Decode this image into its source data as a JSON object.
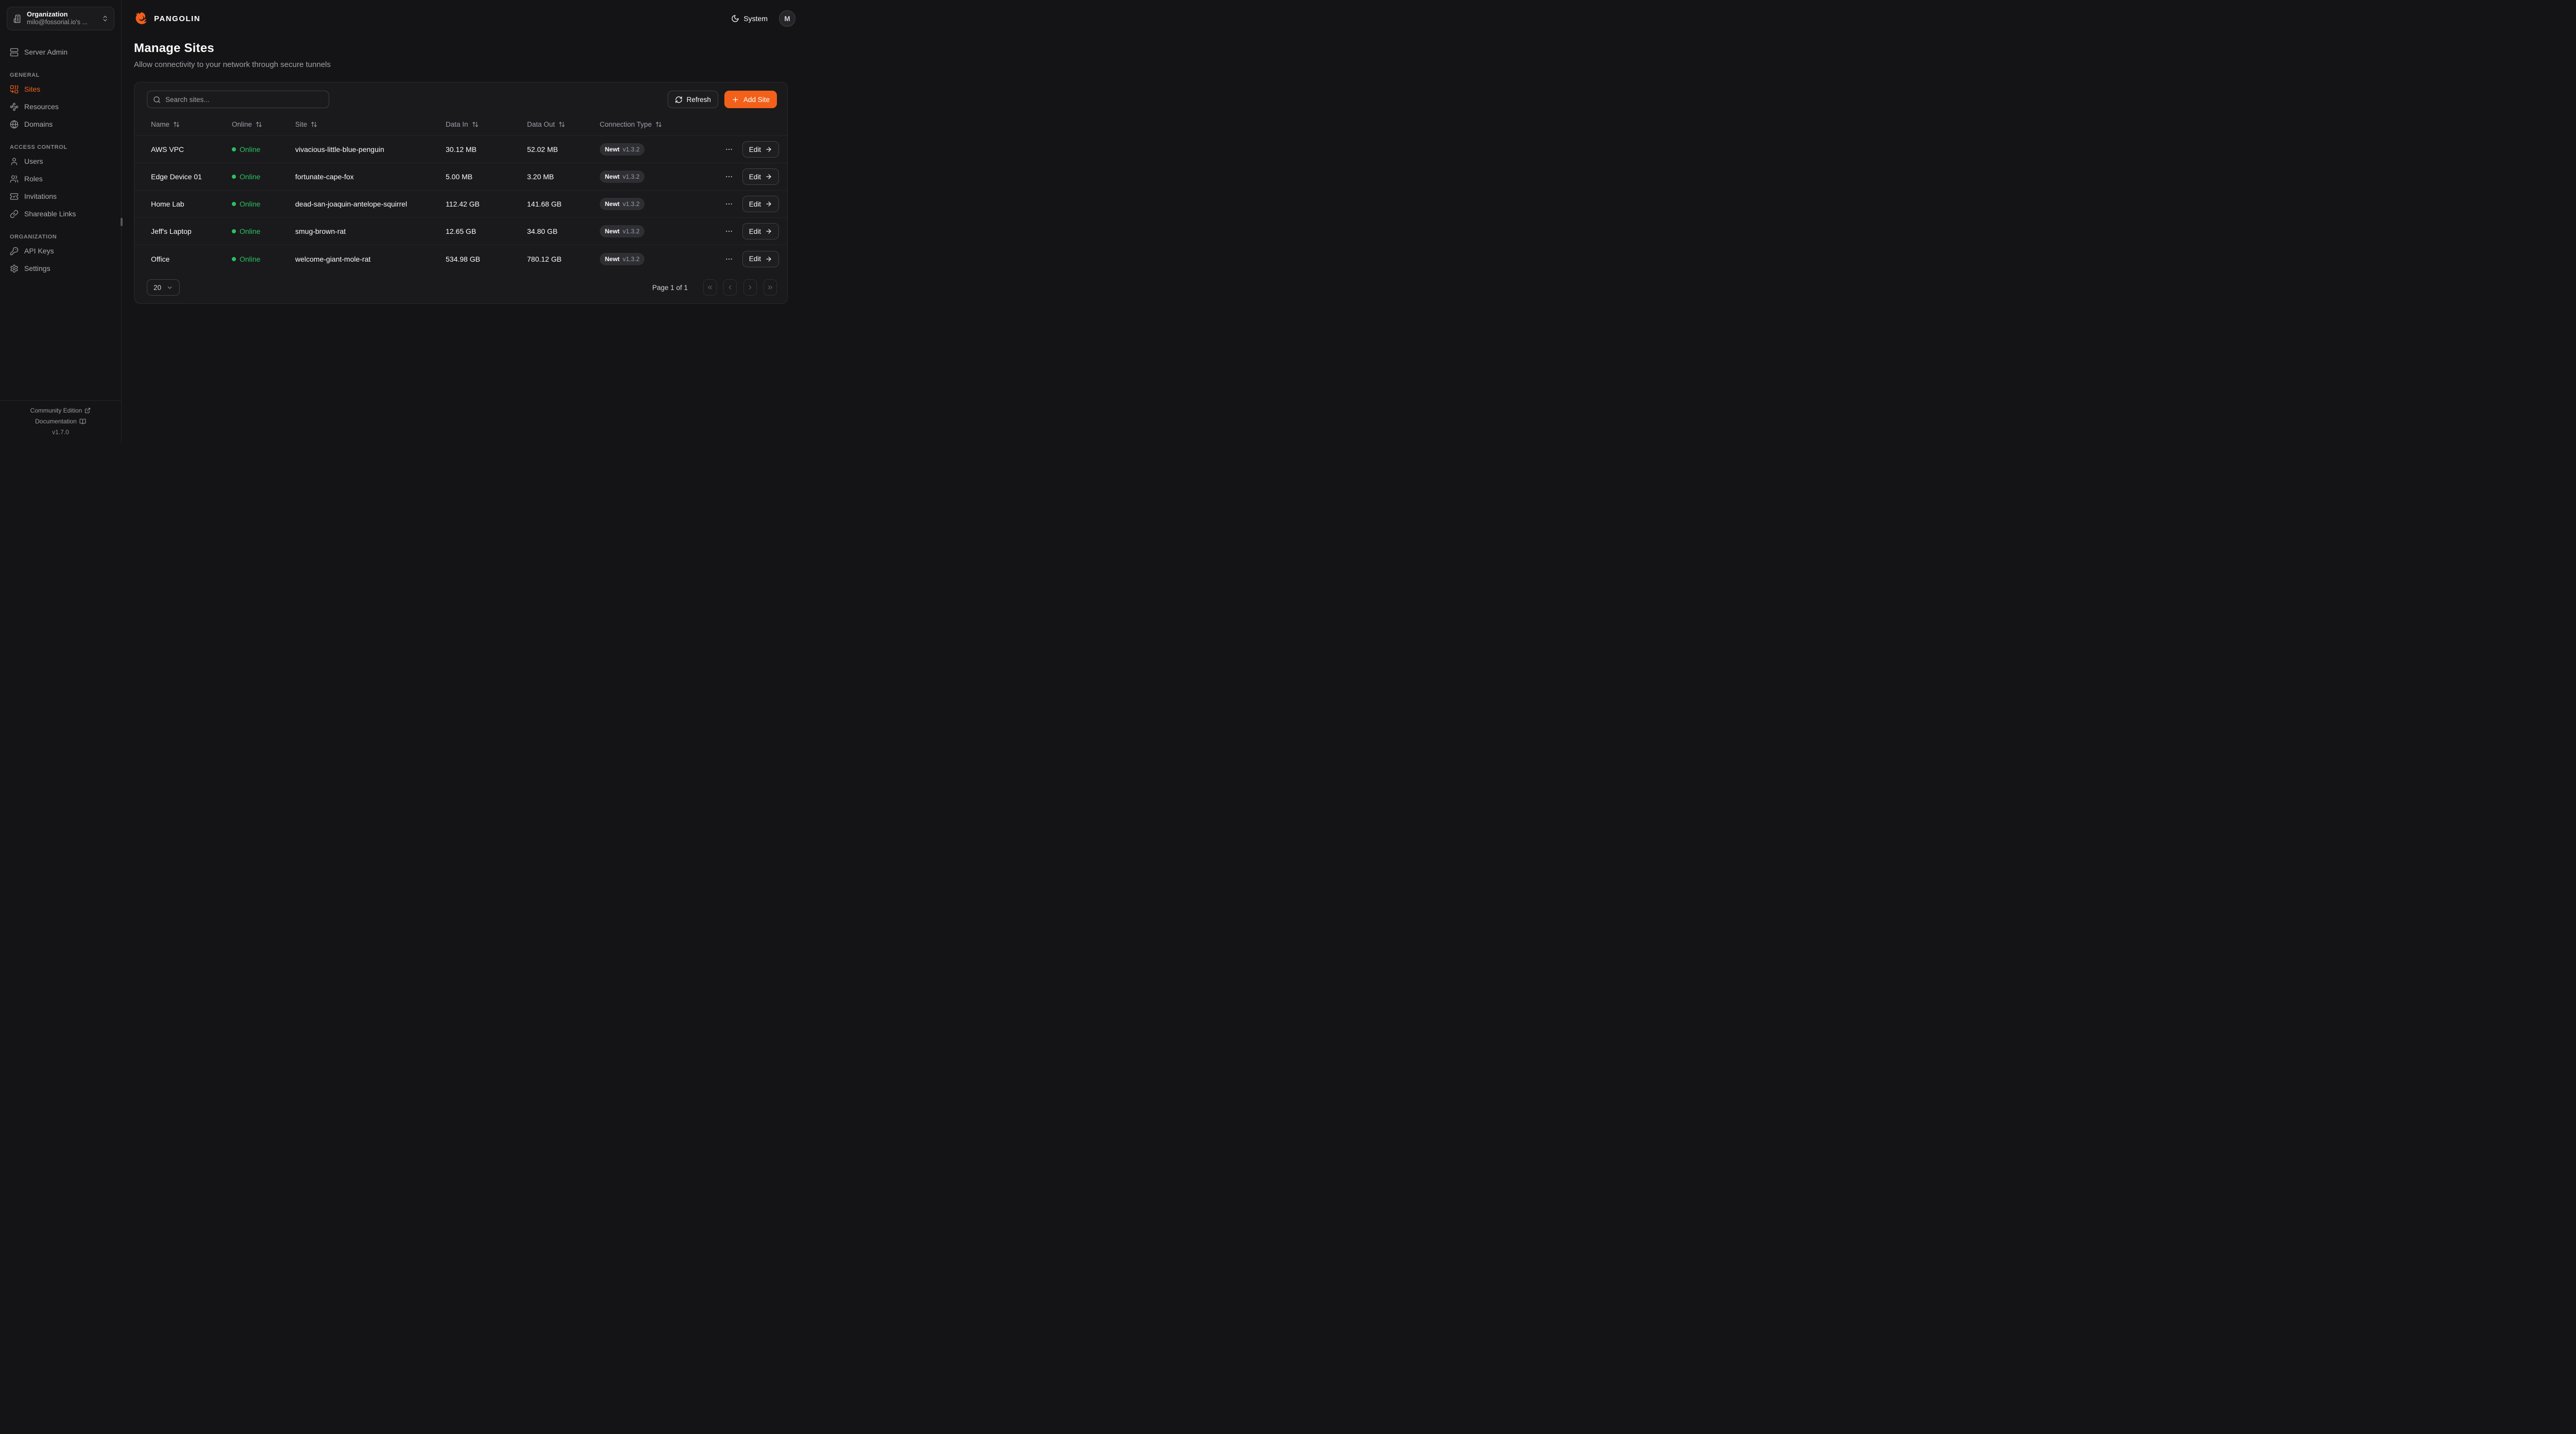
{
  "brand": {
    "name": "PANGOLIN"
  },
  "org_selector": {
    "title": "Organization",
    "value": "milo@fossorial.io's ..."
  },
  "sidebar": {
    "top_items": [
      {
        "label": "Server Admin",
        "icon": "server-icon",
        "active": false
      }
    ],
    "sections": [
      {
        "label": "GENERAL",
        "items": [
          {
            "label": "Sites",
            "icon": "sites-icon",
            "active": true
          },
          {
            "label": "Resources",
            "icon": "resources-icon",
            "active": false
          },
          {
            "label": "Domains",
            "icon": "globe-icon",
            "active": false
          }
        ]
      },
      {
        "label": "ACCESS CONTROL",
        "items": [
          {
            "label": "Users",
            "icon": "user-icon",
            "active": false
          },
          {
            "label": "Roles",
            "icon": "users-icon",
            "active": false
          },
          {
            "label": "Invitations",
            "icon": "invitation-icon",
            "active": false
          },
          {
            "label": "Shareable Links",
            "icon": "link-icon",
            "active": false
          }
        ]
      },
      {
        "label": "ORGANIZATION",
        "items": [
          {
            "label": "API Keys",
            "icon": "key-icon",
            "active": false
          },
          {
            "label": "Settings",
            "icon": "gear-icon",
            "active": false
          }
        ]
      }
    ],
    "footer": {
      "community_label": "Community Edition",
      "docs_label": "Documentation",
      "version": "v1.7.0"
    }
  },
  "topbar": {
    "theme_label": "System",
    "avatar_initial": "M"
  },
  "page": {
    "title": "Manage Sites",
    "subtitle": "Allow connectivity to your network through secure tunnels"
  },
  "toolbar": {
    "search_placeholder": "Search sites...",
    "refresh_label": "Refresh",
    "add_site_label": "Add Site"
  },
  "table": {
    "columns": [
      {
        "label": "Name"
      },
      {
        "label": "Online"
      },
      {
        "label": "Site"
      },
      {
        "label": "Data In"
      },
      {
        "label": "Data Out"
      },
      {
        "label": "Connection Type"
      }
    ],
    "edit_label": "Edit",
    "rows": [
      {
        "name": "AWS VPC",
        "status": "Online",
        "site": "vivacious-little-blue-penguin",
        "data_in": "30.12 MB",
        "data_out": "52.02 MB",
        "conn": "Newt",
        "version": "v1.3.2"
      },
      {
        "name": "Edge Device 01",
        "status": "Online",
        "site": "fortunate-cape-fox",
        "data_in": "5.00 MB",
        "data_out": "3.20 MB",
        "conn": "Newt",
        "version": "v1.3.2"
      },
      {
        "name": "Home Lab",
        "status": "Online",
        "site": "dead-san-joaquin-antelope-squirrel",
        "data_in": "112.42 GB",
        "data_out": "141.68 GB",
        "conn": "Newt",
        "version": "v1.3.2"
      },
      {
        "name": "Jeff's Laptop",
        "status": "Online",
        "site": "smug-brown-rat",
        "data_in": "12.65 GB",
        "data_out": "34.80 GB",
        "conn": "Newt",
        "version": "v1.3.2"
      },
      {
        "name": "Office",
        "status": "Online",
        "site": "welcome-giant-mole-rat",
        "data_in": "534.98 GB",
        "data_out": "780.12 GB",
        "conn": "Newt",
        "version": "v1.3.2"
      }
    ]
  },
  "pagination": {
    "page_size": "20",
    "info": "Page 1 of 1"
  },
  "colors": {
    "accent": "#F2601A",
    "online": "#2DC05F"
  }
}
